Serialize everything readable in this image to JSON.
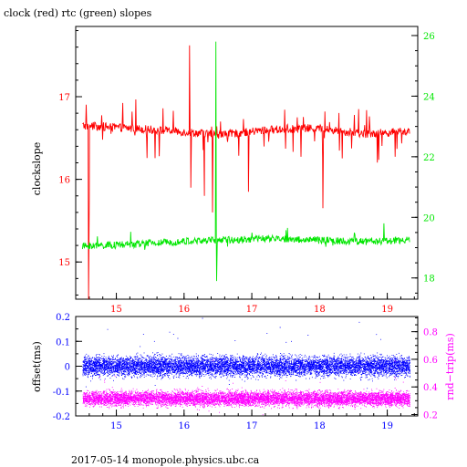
{
  "title": "clock (red) rtc (green) slopes",
  "footer": "2017-05-14  monopole.physics.ubc.ca",
  "colors": {
    "clock": "#ff0000",
    "rtc": "#00e600",
    "offset": "#0000ff",
    "rndtrip": "#ff00ff",
    "axis": "#000000"
  },
  "chart_data": [
    {
      "type": "line",
      "xlim": [
        14.4,
        19.45
      ],
      "x_ticks": [
        15,
        16,
        17,
        18,
        19
      ],
      "ylabel": "clockslope",
      "ylim": [
        14.55,
        17.85
      ],
      "y_ticks": [
        15,
        16,
        17
      ],
      "y2lim": [
        17.3,
        26.3
      ],
      "y2_ticks": [
        18,
        20,
        22,
        24,
        26
      ],
      "series": [
        {
          "color": "#ff0000",
          "axis": "left",
          "x_range": [
            14.5,
            19.33
          ],
          "baseline": [
            16.65,
            16.62,
            16.58,
            16.54,
            16.6,
            16.62,
            16.55,
            16.58
          ],
          "spikes": [
            [
              14.6,
              15.8
            ],
            [
              14.59,
              14.55
            ],
            [
              16.08,
              17.62
            ],
            [
              16.1,
              15.9
            ],
            [
              16.3,
              15.8
            ],
            [
              16.42,
              15.6
            ],
            [
              16.95,
              15.85
            ],
            [
              18.05,
              15.65
            ]
          ]
        },
        {
          "color": "#00e600",
          "axis": "right",
          "x_range": [
            14.5,
            19.33
          ],
          "baseline": [
            19.05,
            19.1,
            19.2,
            19.25,
            19.3,
            19.25,
            19.2,
            19.25
          ],
          "spikes": [
            [
              16.47,
              25.8
            ],
            [
              16.48,
              17.9
            ],
            [
              18.95,
              19.8
            ]
          ]
        }
      ]
    },
    {
      "type": "scatter",
      "xlim": [
        14.4,
        19.45
      ],
      "x_ticks": [
        15,
        16,
        17,
        18,
        19
      ],
      "ylabel": "offset(ms)",
      "ylim": [
        -0.2,
        0.2
      ],
      "y_ticks": [
        -0.2,
        -0.1,
        0,
        0.1,
        0.2
      ],
      "y2label": "rnd−trip(ms)",
      "y2lim": [
        0.19,
        0.91
      ],
      "y2_ticks": [
        0.2,
        0.4,
        0.6,
        0.8
      ],
      "series": [
        {
          "color": "#0000ff",
          "axis": "left",
          "x_range": [
            14.5,
            19.33
          ],
          "center": 0.0,
          "spread": 0.03
        },
        {
          "color": "#ff00ff",
          "axis": "right",
          "x_range": [
            14.5,
            19.33
          ],
          "center": 0.315,
          "spread": 0.04
        }
      ]
    }
  ]
}
